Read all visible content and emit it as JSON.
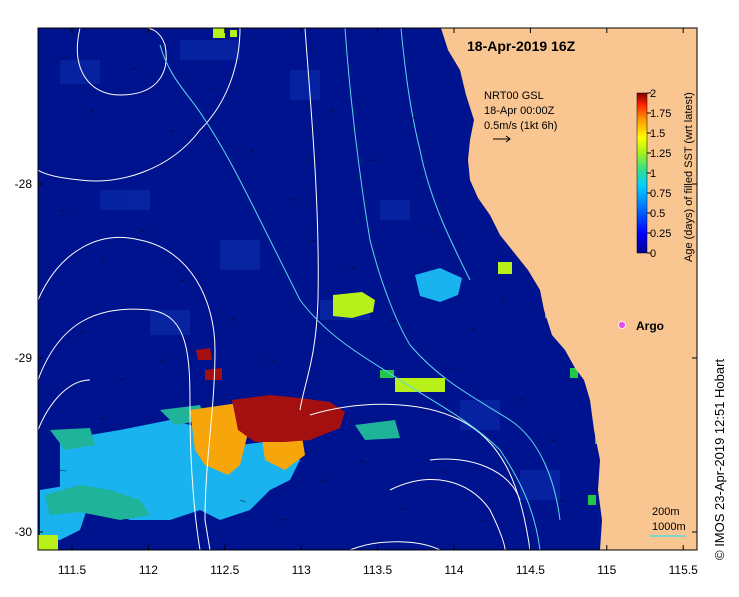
{
  "map": {
    "title": "18-Apr-2019 16Z",
    "data_source": "NRT00 GSL",
    "data_time": "18-Apr 00:00Z",
    "current_scale": "0.5m/s (1kt 6h)",
    "argo_label": "Argo",
    "contour_200": "200m",
    "contour_1000": "1000m",
    "credit": "© IMOS 23-Apr-2019 12:51 Hobart",
    "colors": {
      "ocean": "#00138f",
      "land": "#f9c692",
      "argo": "#e24ef0",
      "contour": "#ffffff",
      "isobath": "#5ad6e8"
    },
    "lon_ticks": [
      "111.5",
      "112",
      "112.5",
      "113",
      "113.5",
      "114",
      "114.5",
      "115",
      "115.5"
    ],
    "lat_ticks": [
      "-28",
      "-29",
      "-30"
    ],
    "colorbar": {
      "label": "Age (days) of filled SST (wrt latest)",
      "ticks": [
        "2",
        "1.75",
        "1.5",
        "1.25",
        "1",
        "0.75",
        "0.5",
        "0.25",
        "0"
      ],
      "range": [
        0,
        2
      ]
    }
  }
}
